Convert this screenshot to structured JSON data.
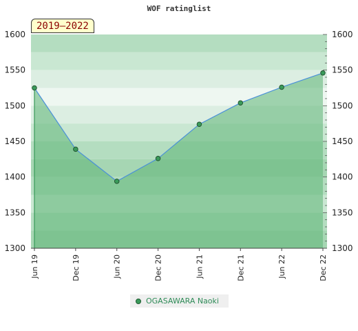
{
  "chart_data": {
    "type": "area",
    "title": "WOF ratinglist",
    "period_label": "2019–2022",
    "x": [
      "Jun 19",
      "Dec 19",
      "Jun 20",
      "Dec 20",
      "Jun 21",
      "Dec 21",
      "Jun 22",
      "Dec 22"
    ],
    "series": [
      {
        "name": "OGASAWARA Naoki",
        "values": [
          1525,
          1439,
          1394,
          1426,
          1474,
          1504,
          1526,
          1546
        ]
      }
    ],
    "ylim": [
      1300,
      1600
    ],
    "y_ticks": [
      1300,
      1350,
      1400,
      1450,
      1500,
      1550,
      1600
    ],
    "xlabel": "",
    "ylabel": "",
    "grid": true,
    "legend_position": "bottom",
    "colors": {
      "area_fill": "#5db574",
      "line": "#4a90d9",
      "marker": "#3a9a5a",
      "band_light": "#d6eedd",
      "band_dark": "#9fd4ad"
    }
  }
}
